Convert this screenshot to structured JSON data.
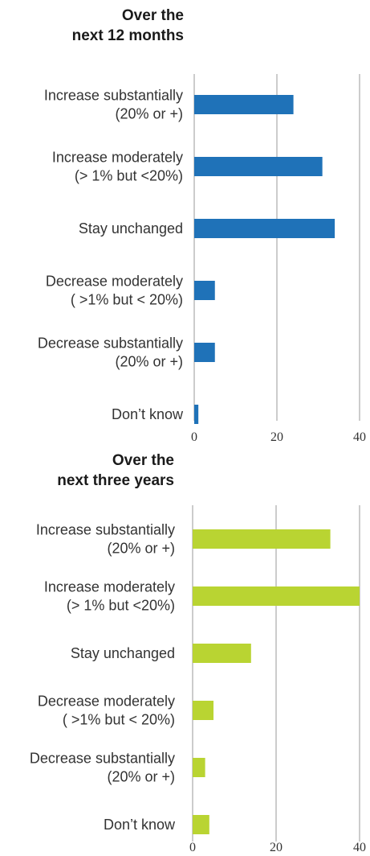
{
  "chart_data": [
    {
      "type": "bar",
      "orientation": "horizontal",
      "title_lines": [
        "Over the",
        "next 12 months"
      ],
      "categories": [
        [
          "Increase substantially",
          "(20% or +)"
        ],
        [
          "Increase moderately",
          "(> 1% but <20%)"
        ],
        [
          "Stay unchanged"
        ],
        [
          "Decrease moderately",
          "( >1% but < 20%)"
        ],
        [
          "Decrease substantially",
          "(20% or +)"
        ],
        [
          "Don’t know"
        ]
      ],
      "values": [
        24,
        31,
        34,
        5,
        5,
        1
      ],
      "xlim": [
        0,
        40
      ],
      "xticks": [
        "0",
        "20",
        "40"
      ],
      "color": "#1f72b8",
      "grid": true
    },
    {
      "type": "bar",
      "orientation": "horizontal",
      "title_lines": [
        "Over the",
        "next three years"
      ],
      "categories": [
        [
          "Increase substantially",
          "(20% or +)"
        ],
        [
          "Increase moderately",
          "(> 1% but <20%)"
        ],
        [
          "Stay unchanged"
        ],
        [
          "Decrease moderately",
          "( >1% but < 20%)"
        ],
        [
          "Decrease substantially",
          "(20% or +)"
        ],
        [
          "Don’t know"
        ]
      ],
      "values": [
        33,
        40,
        14,
        5,
        3,
        4
      ],
      "xlim": [
        0,
        40
      ],
      "xticks": [
        "0",
        "20",
        "40"
      ],
      "color": "#b9d432",
      "grid": true
    }
  ]
}
